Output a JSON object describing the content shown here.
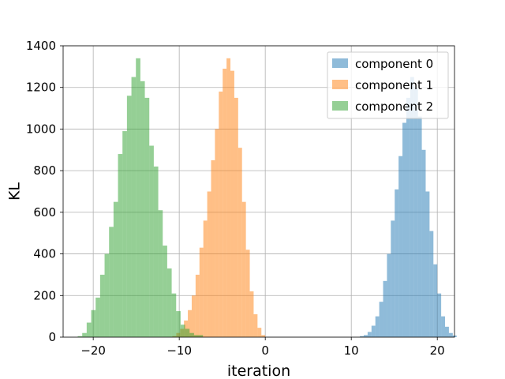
{
  "chart_data": {
    "type": "bar",
    "title": "",
    "xlabel": "iteration",
    "ylabel": "KL",
    "xlim": [
      -23.5,
      22.0
    ],
    "ylim": [
      0,
      1400
    ],
    "xticks": [
      -20,
      -10,
      0,
      10,
      20
    ],
    "yticks": [
      0,
      200,
      400,
      600,
      800,
      1000,
      1200,
      1400
    ],
    "grid": true,
    "legend_position": "top-right",
    "series": [
      {
        "name": "component 0",
        "color": "#1f77b4",
        "opacity": 0.5,
        "bin_start": 11.0,
        "bin_width": 0.45,
        "values": [
          5,
          10,
          25,
          55,
          100,
          170,
          270,
          400,
          560,
          710,
          870,
          1030,
          1150,
          1250,
          1200,
          1060,
          900,
          700,
          510,
          350,
          210,
          100,
          50,
          20,
          8
        ]
      },
      {
        "name": "component 1",
        "color": "#ff7f0e",
        "opacity": 0.5,
        "bin_start": -10.8,
        "bin_width": 0.45,
        "values": [
          5,
          20,
          40,
          80,
          130,
          200,
          300,
          430,
          560,
          700,
          850,
          1000,
          1180,
          1290,
          1340,
          1280,
          1150,
          910,
          650,
          420,
          220,
          110,
          45,
          10
        ]
      },
      {
        "name": "component 2",
        "color": "#2ca02c",
        "opacity": 0.5,
        "bin_start": -21.8,
        "bin_width": 0.52,
        "values": [
          5,
          20,
          70,
          130,
          190,
          300,
          400,
          530,
          650,
          880,
          990,
          1160,
          1250,
          1340,
          1230,
          1150,
          920,
          820,
          610,
          440,
          330,
          210,
          125,
          60,
          40,
          20,
          10,
          10
        ]
      }
    ]
  }
}
